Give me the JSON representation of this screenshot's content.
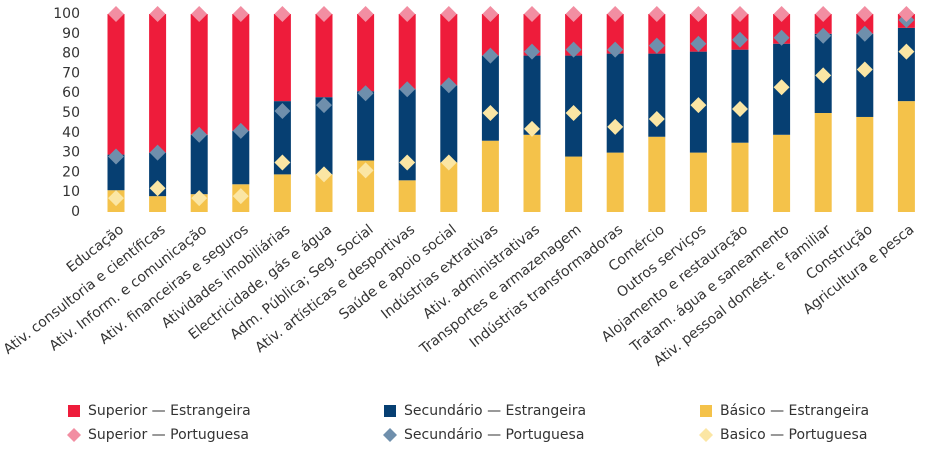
{
  "chart_data": {
    "type": "bar",
    "categories": [
      "Educação",
      "Ativ. consultoria e científicas",
      "Ativ. Inform. e comunicação",
      "Ativ. financeiras e seguros",
      "Atividades imobiliárias",
      "Electricidade, gás e água",
      "Adm. Pública; Seg. Social",
      "Ativ. artísticas e desportivas",
      "Saúde e apoio social",
      "Indústrias extrativas",
      "Ativ. administrativas",
      "Transportes e armazenagem",
      "Indústrias transformadoras",
      "Comércio",
      "Outros serviços",
      "Alojamento e restauração",
      "Tratam. água e saneamento",
      "Ativ. pessoal domést. e familiar",
      "Construção",
      "Agricultura e pesca"
    ],
    "series": [
      {
        "name": "Superior — Estrangeira",
        "marker": "bar",
        "color": "#ee1c3b",
        "values": [
          71,
          70,
          61,
          59,
          44,
          42,
          39,
          38,
          36,
          21,
          21,
          21,
          20,
          20,
          19,
          18,
          15,
          10,
          10,
          7
        ]
      },
      {
        "name": "Secundário — Estrangeira",
        "marker": "bar",
        "color": "#063f72",
        "values": [
          18,
          22,
          30,
          27,
          37,
          39,
          35,
          46,
          39,
          43,
          40,
          51,
          50,
          42,
          51,
          47,
          46,
          40,
          42,
          37
        ]
      },
      {
        "name": "Básico — Estrangeira",
        "marker": "bar",
        "color": "#f4c24a",
        "values": [
          11,
          8,
          9,
          14,
          19,
          19,
          26,
          16,
          25,
          36,
          39,
          28,
          30,
          38,
          30,
          35,
          39,
          50,
          48,
          56
        ]
      },
      {
        "name": "Superior — Portuguesa",
        "marker": "diamond",
        "color": "#f28ea2",
        "values": [
          72,
          70,
          61,
          59,
          49,
          46,
          40,
          38,
          36,
          21,
          19,
          18,
          18,
          16,
          15,
          13,
          12,
          11,
          10,
          3
        ]
      },
      {
        "name": "Secundário — Portuguesa",
        "marker": "diamond",
        "color": "#6f8fac",
        "values": [
          21,
          18,
          32,
          33,
          26,
          35,
          39,
          37,
          39,
          29,
          39,
          32,
          39,
          37,
          31,
          35,
          25,
          20,
          18,
          16
        ]
      },
      {
        "name": "Basico — Portuguesa",
        "marker": "diamond",
        "color": "#fbe6a4",
        "values": [
          7,
          12,
          7,
          8,
          25,
          19,
          21,
          25,
          25,
          50,
          42,
          50,
          43,
          47,
          54,
          52,
          63,
          69,
          72,
          81
        ]
      }
    ],
    "ylim": [
      0,
      100
    ],
    "yticks": [
      0,
      10,
      20,
      30,
      40,
      50,
      60,
      70,
      80,
      90,
      100
    ],
    "grid": false
  }
}
